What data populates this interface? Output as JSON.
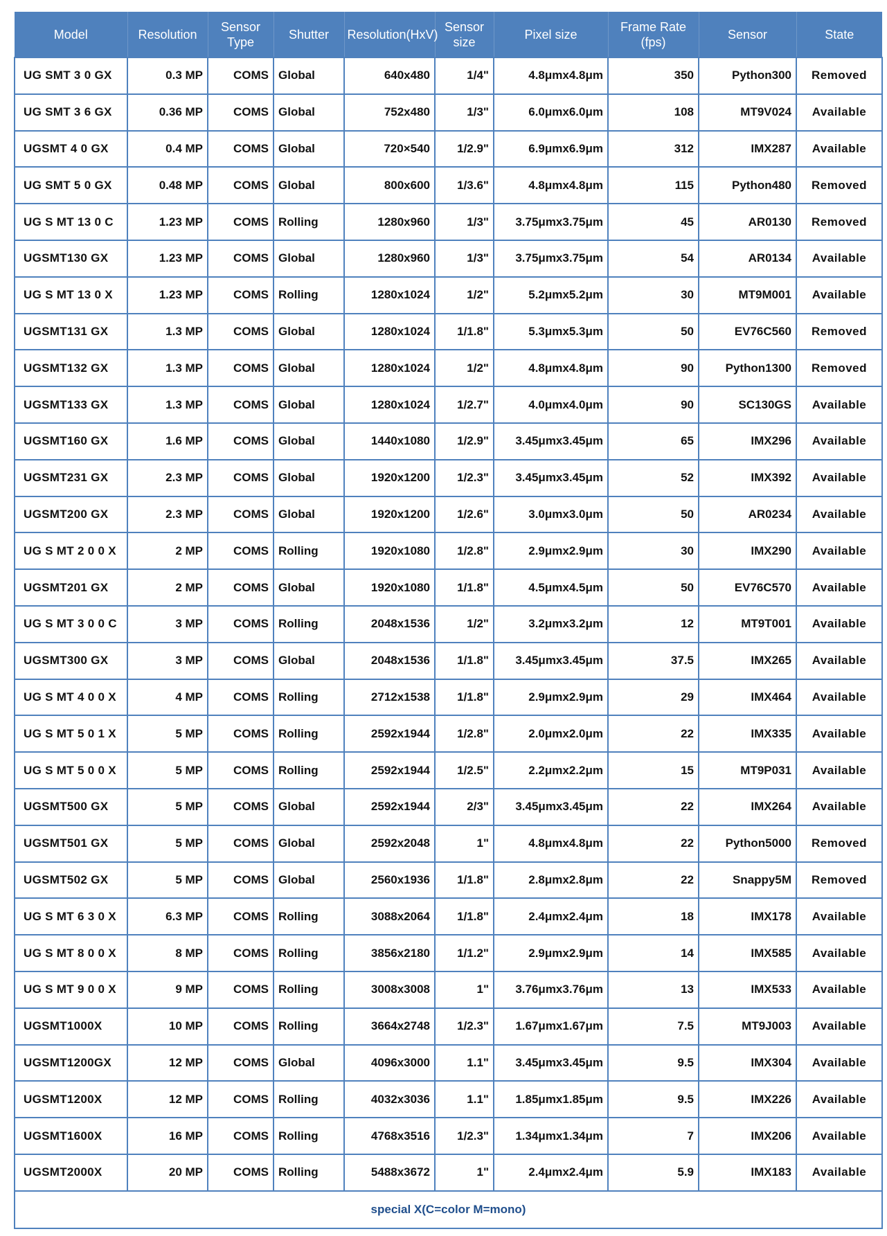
{
  "colors": {
    "header_bg": "#4f81bd",
    "border": "#4f81bd",
    "footer_text": "#1f4e8c"
  },
  "headers": [
    "Model",
    "Resolution",
    "Sensor Type",
    "Shutter",
    "Resolution(HxV)",
    "Sensor size",
    "Pixel size",
    "Frame Rate (fps)",
    "Sensor",
    "State"
  ],
  "rows": [
    [
      "UG SMT 3 0 GX",
      "0.3 MP",
      "COMS",
      "Global",
      "640x480",
      "1/4\"",
      "4.8μmx4.8μm",
      "350",
      "Python300",
      "Removed"
    ],
    [
      "UG SMT 3 6 GX",
      "0.36 MP",
      "COMS",
      "Global",
      "752x480",
      "1/3\"",
      "6.0μmx6.0μm",
      "108",
      "MT9V024",
      "Available"
    ],
    [
      "UGSMT 4 0 GX",
      "0.4  MP",
      "COMS",
      "Global",
      "720×540",
      "1/2.9\"",
      "6.9μmx6.9μm",
      "312",
      "IMX287",
      "Available"
    ],
    [
      "UG SMT 5 0 GX",
      "0.48 MP",
      "COMS",
      "Global",
      "800x600",
      "1/3.6\"",
      "4.8μmx4.8μm",
      "115",
      "Python480",
      "Removed"
    ],
    [
      "UG S MT 13 0 C",
      "1.23  MP",
      "COMS",
      "Rolling",
      "1280x960",
      "1/3\"",
      "3.75μmx3.75μm",
      "45",
      "AR0130",
      "Removed"
    ],
    [
      "UGSMT130 GX",
      "1.23  MP",
      "COMS",
      "Global",
      "1280x960",
      "1/3\"",
      "3.75μmx3.75μm",
      "54",
      "AR0134",
      "Available"
    ],
    [
      "UG S MT 13 0 X",
      "1.23  MP",
      "COMS",
      "Rolling",
      "1280x1024",
      "1/2\"",
      "5.2μmx5.2μm",
      "30",
      "MT9M001",
      "Available"
    ],
    [
      "UGSMT131 GX",
      "1.3  MP",
      "COMS",
      "Global",
      "1280x1024",
      "1/1.8\"",
      "5.3μmx5.3μm",
      "50",
      "EV76C560",
      "Removed"
    ],
    [
      "UGSMT132 GX",
      "1.3  MP",
      "COMS",
      "Global",
      "1280x1024",
      "1/2\"",
      "4.8μmx4.8μm",
      "90",
      "Python1300",
      "Removed"
    ],
    [
      "UGSMT133 GX",
      "1.3  MP",
      "COMS",
      "Global",
      "1280x1024",
      "1/2.7\"",
      "4.0μmx4.0μm",
      "90",
      "SC130GS",
      "Available"
    ],
    [
      "UGSMT160 GX",
      "1.6  MP",
      "COMS",
      "Global",
      "1440x1080",
      "1/2.9\"",
      "3.45μmx3.45μm",
      "65",
      "IMX296",
      "Available"
    ],
    [
      "UGSMT231 GX",
      "2.3  MP",
      "COMS",
      "Global",
      "1920x1200",
      "1/2.3\"",
      "3.45μmx3.45μm",
      "52",
      "IMX392",
      "Available"
    ],
    [
      "UGSMT200 GX",
      "2.3  MP",
      "COMS",
      "Global",
      "1920x1200",
      "1/2.6\"",
      "3.0μmx3.0μm",
      "50",
      "AR0234",
      "Available"
    ],
    [
      "UG S MT 2 0 0 X",
      "2 MP",
      "COMS",
      "Rolling",
      "1920x1080",
      "1/2.8\"",
      "2.9μmx2.9μm",
      "30",
      "IMX290",
      "Available"
    ],
    [
      "UGSMT201 GX",
      "2 MP",
      "COMS",
      "Global",
      "1920x1080",
      "1/1.8\"",
      "4.5μmx4.5μm",
      "50",
      "EV76C570",
      "Available"
    ],
    [
      "UG S MT 3 0 0 C",
      "3 MP",
      "COMS",
      "Rolling",
      "2048x1536",
      "1/2\"",
      "3.2μmx3.2μm",
      "12",
      "MT9T001",
      "Available"
    ],
    [
      "UGSMT300 GX",
      "3 MP",
      "COMS",
      "Global",
      "2048x1536",
      "1/1.8\"",
      "3.45μmx3.45μm",
      "37.5",
      "IMX265",
      "Available"
    ],
    [
      "UG S MT 4 0 0 X",
      "4 MP",
      "COMS",
      "Rolling",
      "2712x1538",
      "1/1.8\"",
      "2.9μmx2.9μm",
      "29",
      "IMX464",
      "Available"
    ],
    [
      "UG S MT 5 0 1 X",
      "5 MP",
      "COMS",
      "Rolling",
      "2592x1944",
      "1/2.8\"",
      "2.0μmx2.0μm",
      "22",
      "IMX335",
      "Available"
    ],
    [
      "UG S MT 5 0 0 X",
      "5 MP",
      "COMS",
      "Rolling",
      "2592x1944",
      "1/2.5\"",
      "2.2μmx2.2μm",
      "15",
      "MT9P031",
      "Available"
    ],
    [
      "UGSMT500 GX",
      "5 MP",
      "COMS",
      "Global",
      "2592x1944",
      "2/3\"",
      "3.45μmx3.45μm",
      "22",
      "IMX264",
      "Available"
    ],
    [
      "UGSMT501 GX",
      "5 MP",
      "COMS",
      "Global",
      "2592x2048",
      "1\"",
      "4.8μmx4.8μm",
      "22",
      "Python5000",
      "Removed"
    ],
    [
      "UGSMT502 GX",
      "5 MP",
      "COMS",
      "Global",
      "2560x1936",
      "1/1.8\"",
      "2.8μmx2.8μm",
      "22",
      "Snappy5M",
      "Removed"
    ],
    [
      "UG S MT 6 3 0 X",
      "6.3 MP",
      "COMS",
      "Rolling",
      "3088x2064",
      "1/1.8\"",
      "2.4μmx2.4μm",
      "18",
      "IMX178",
      "Available"
    ],
    [
      "UG S MT 8 0 0 X",
      "8 MP",
      "COMS",
      "Rolling",
      "3856x2180",
      "1/1.2\"",
      "2.9μmx2.9μm",
      "14",
      "IMX585",
      "Available"
    ],
    [
      "UG S MT 9 0 0 X",
      "9 MP",
      "COMS",
      "Rolling",
      "3008x3008",
      "1\"",
      "3.76μmx3.76μm",
      "13",
      "IMX533",
      "Available"
    ],
    [
      "UGSMT1000X",
      "10 MP",
      "COMS",
      "Rolling",
      "3664x2748",
      "1/2.3\"",
      "1.67μmx1.67μm",
      "7.5",
      "MT9J003",
      "Available"
    ],
    [
      "UGSMT1200GX",
      "12 MP",
      "COMS",
      "Global",
      "4096x3000",
      "1.1\"",
      "3.45μmx3.45μm",
      "9.5",
      "IMX304",
      "Available"
    ],
    [
      "UGSMT1200X",
      "12 MP",
      "COMS",
      "Rolling",
      "4032x3036",
      "1.1\"",
      "1.85μmx1.85μm",
      "9.5",
      "IMX226",
      "Available"
    ],
    [
      "UGSMT1600X",
      "16 MP",
      "COMS",
      "Rolling",
      "4768x3516",
      "1/2.3\"",
      "1.34μmx1.34μm",
      "7",
      "IMX206",
      "Available"
    ],
    [
      "UGSMT2000X",
      "20 MP",
      "COMS",
      "Rolling",
      "5488x3672",
      "1\"",
      "2.4μmx2.4μm",
      "5.9",
      "IMX183",
      "Available"
    ]
  ],
  "footer": "special  X(C=color  M=mono)"
}
